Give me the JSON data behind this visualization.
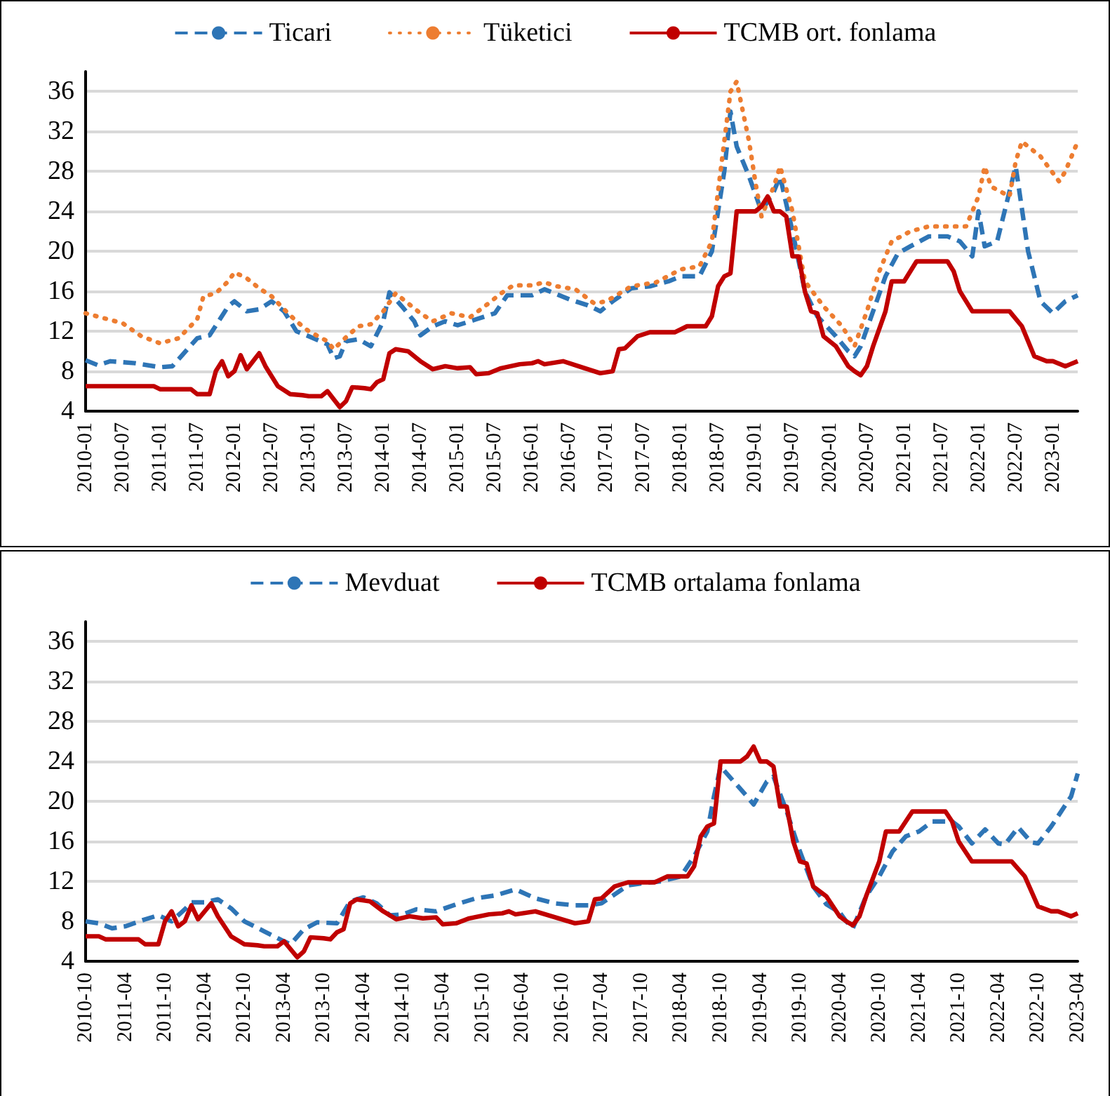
{
  "chart_data": [
    {
      "type": "line",
      "legend": "top",
      "grid": "y",
      "ylim": [
        4,
        38
      ],
      "yticks": [
        4,
        8,
        12,
        16,
        20,
        24,
        28,
        32,
        36
      ],
      "xlim": [
        "2010-01",
        "2023-05"
      ],
      "xticks": [
        "2010-01",
        "2010-07",
        "2011-01",
        "2011-07",
        "2012-01",
        "2012-07",
        "2013-01",
        "2013-07",
        "2014-01",
        "2014-07",
        "2015-01",
        "2015-07",
        "2016-01",
        "2016-07",
        "2017-01",
        "2017-07",
        "2018-01",
        "2018-07",
        "2019-01",
        "2019-07",
        "2020-01",
        "2020-07",
        "2021-01",
        "2021-07",
        "2022-01",
        "2022-07",
        "2023-01"
      ],
      "series": [
        {
          "name": "Ticari",
          "color": "#2e75b6",
          "line_style": "dashed",
          "x": [
            "2010-01",
            "2010-03",
            "2010-05",
            "2010-09",
            "2011-01",
            "2011-03",
            "2011-07",
            "2011-09",
            "2011-12",
            "2012-01",
            "2012-03",
            "2012-05",
            "2012-07",
            "2012-09",
            "2012-11",
            "2013-01",
            "2013-04",
            "2013-05",
            "2013-06",
            "2013-07",
            "2013-09",
            "2013-11",
            "2014-01",
            "2014-02",
            "2014-04",
            "2014-06",
            "2014-07",
            "2014-09",
            "2014-11",
            "2015-01",
            "2015-04",
            "2015-07",
            "2015-09",
            "2016-01",
            "2016-03",
            "2016-07",
            "2016-10",
            "2016-12",
            "2017-02",
            "2017-05",
            "2017-08",
            "2017-11",
            "2018-01",
            "2018-04",
            "2018-06",
            "2018-08",
            "2018-09",
            "2018-10",
            "2018-12",
            "2019-02",
            "2019-04",
            "2019-05",
            "2019-07",
            "2019-09",
            "2019-11",
            "2020-02",
            "2020-04",
            "2020-05",
            "2020-06",
            "2020-08",
            "2020-10",
            "2020-12",
            "2021-02",
            "2021-05",
            "2021-08",
            "2021-10",
            "2021-12",
            "2022-01",
            "2022-02",
            "2022-04",
            "2022-07",
            "2022-09",
            "2022-11",
            "2023-01",
            "2023-03",
            "2023-05"
          ],
          "values": [
            9.1,
            8.6,
            9.0,
            8.8,
            8.4,
            8.5,
            11.3,
            11.6,
            14.5,
            15.0,
            14.0,
            14.2,
            15.0,
            14.0,
            12.0,
            11.5,
            10.7,
            9.3,
            9.5,
            11.0,
            11.2,
            10.5,
            13.0,
            15.9,
            14.5,
            13.0,
            11.6,
            12.5,
            13.0,
            12.6,
            13.2,
            13.8,
            15.6,
            15.6,
            16.2,
            15.2,
            14.6,
            14.0,
            15.0,
            16.3,
            16.5,
            17.0,
            17.5,
            17.5,
            20.0,
            28.0,
            34.0,
            30.5,
            27.5,
            24.0,
            26.0,
            27.5,
            22.0,
            16.0,
            13.5,
            11.5,
            10.0,
            9.5,
            10.5,
            14.0,
            17.5,
            19.8,
            20.5,
            21.5,
            21.5,
            21.0,
            19.5,
            24.0,
            20.5,
            21.0,
            28.5,
            20.0,
            15.0,
            13.8,
            15.0,
            15.6
          ]
        },
        {
          "name": "Tüketici",
          "color": "#ed7d31",
          "line_style": "dotted",
          "x": [
            "2010-01",
            "2010-04",
            "2010-07",
            "2010-10",
            "2011-01",
            "2011-04",
            "2011-07",
            "2011-08",
            "2011-10",
            "2011-12",
            "2012-01",
            "2012-03",
            "2012-05",
            "2012-07",
            "2012-09",
            "2012-11",
            "2013-01",
            "2013-04",
            "2013-05",
            "2013-07",
            "2013-09",
            "2013-11",
            "2014-01",
            "2014-03",
            "2014-05",
            "2014-07",
            "2014-09",
            "2014-12",
            "2015-03",
            "2015-06",
            "2015-08",
            "2015-10",
            "2016-01",
            "2016-03",
            "2016-05",
            "2016-08",
            "2016-11",
            "2017-01",
            "2017-05",
            "2017-09",
            "2018-01",
            "2018-04",
            "2018-06",
            "2018-08",
            "2018-09",
            "2018-10",
            "2018-12",
            "2019-01",
            "2019-02",
            "2019-04",
            "2019-05",
            "2019-07",
            "2019-09",
            "2019-12",
            "2020-03",
            "2020-05",
            "2020-07",
            "2020-09",
            "2020-11",
            "2021-02",
            "2021-05",
            "2021-08",
            "2021-11",
            "2022-01",
            "2022-02",
            "2022-03",
            "2022-06",
            "2022-07",
            "2022-08",
            "2022-11",
            "2023-02",
            "2023-03",
            "2023-05"
          ],
          "values": [
            13.8,
            13.3,
            12.8,
            11.5,
            10.8,
            11.3,
            13.2,
            15.5,
            15.8,
            17.0,
            17.9,
            17.3,
            16.3,
            15.5,
            14.2,
            13.0,
            12.0,
            11.0,
            10.2,
            11.4,
            12.5,
            12.7,
            14.0,
            15.8,
            14.8,
            13.8,
            13.0,
            13.8,
            13.4,
            14.8,
            15.8,
            16.6,
            16.6,
            16.9,
            16.5,
            16.2,
            14.8,
            15.0,
            16.5,
            16.9,
            18.2,
            18.5,
            21.0,
            31.0,
            36.0,
            37.0,
            31.0,
            27.0,
            23.5,
            26.5,
            28.5,
            24.0,
            17.0,
            14.5,
            12.5,
            10.5,
            14.0,
            18.0,
            21.0,
            22.0,
            22.5,
            22.5,
            22.5,
            25.5,
            28.5,
            26.5,
            25.5,
            29.0,
            31.0,
            29.5,
            27.0,
            28.0,
            31.0
          ]
        },
        {
          "name": "TCMB ort. fonlama",
          "color": "#c00000",
          "line_style": "solid",
          "x": [
            "2010-01",
            "2010-12",
            "2011-01",
            "2011-06",
            "2011-07",
            "2011-09",
            "2011-10",
            "2011-11",
            "2011-12",
            "2012-01",
            "2012-02",
            "2012-03",
            "2012-05",
            "2012-06",
            "2012-08",
            "2012-10",
            "2012-12",
            "2013-01",
            "2013-03",
            "2013-04",
            "2013-06",
            "2013-07",
            "2013-08",
            "2013-10",
            "2013-11",
            "2013-12",
            "2014-01",
            "2014-02",
            "2014-03",
            "2014-05",
            "2014-07",
            "2014-09",
            "2014-11",
            "2015-01",
            "2015-03",
            "2015-04",
            "2015-06",
            "2015-08",
            "2015-11",
            "2016-01",
            "2016-02",
            "2016-03",
            "2016-06",
            "2016-09",
            "2016-12",
            "2017-02",
            "2017-03",
            "2017-04",
            "2017-06",
            "2017-08",
            "2017-12",
            "2018-02",
            "2018-05",
            "2018-06",
            "2018-07",
            "2018-08",
            "2018-09",
            "2018-10",
            "2019-01",
            "2019-02",
            "2019-03",
            "2019-04",
            "2019-05",
            "2019-06",
            "2019-07",
            "2019-08",
            "2019-09",
            "2019-10",
            "2019-11",
            "2019-12",
            "2020-02",
            "2020-04",
            "2020-05",
            "2020-06",
            "2020-07",
            "2020-08",
            "2020-10",
            "2020-11",
            "2021-01",
            "2021-03",
            "2021-08",
            "2021-09",
            "2021-10",
            "2021-11",
            "2021-12",
            "2022-06",
            "2022-08",
            "2022-10",
            "2022-12",
            "2023-01",
            "2023-03",
            "2023-05"
          ],
          "values": [
            6.5,
            6.5,
            6.2,
            6.2,
            5.7,
            5.7,
            8.0,
            9.0,
            7.5,
            8.0,
            9.6,
            8.2,
            9.8,
            8.5,
            6.5,
            5.7,
            5.6,
            5.5,
            5.5,
            6.0,
            4.4,
            5.0,
            6.4,
            6.3,
            6.2,
            6.9,
            7.2,
            9.8,
            10.2,
            10.0,
            9.0,
            8.2,
            8.5,
            8.3,
            8.4,
            7.7,
            7.8,
            8.3,
            8.7,
            8.8,
            9.0,
            8.7,
            9.0,
            8.4,
            7.8,
            8.0,
            10.2,
            10.3,
            11.5,
            11.9,
            11.9,
            12.5,
            12.5,
            13.5,
            16.5,
            17.5,
            17.8,
            24.0,
            24.0,
            24.5,
            25.5,
            24.0,
            24.0,
            23.5,
            19.5,
            19.5,
            16.0,
            14.0,
            13.8,
            11.5,
            10.5,
            8.5,
            8.0,
            7.6,
            8.5,
            10.5,
            14.0,
            17.0,
            17.0,
            19.0,
            19.0,
            18.0,
            16.0,
            15.0,
            14.0,
            14.0,
            12.5,
            9.5,
            9.0,
            9.0,
            8.5,
            9.0
          ]
        }
      ]
    },
    {
      "type": "line",
      "legend": "top",
      "grid": "y",
      "ylim": [
        4,
        38
      ],
      "yticks": [
        4,
        8,
        12,
        16,
        20,
        24,
        28,
        32,
        36
      ],
      "xlim": [
        "2010-10",
        "2023-04"
      ],
      "xticks": [
        "2010-10",
        "2011-04",
        "2011-10",
        "2012-04",
        "2012-10",
        "2013-04",
        "2013-10",
        "2014-04",
        "2014-10",
        "2015-04",
        "2015-10",
        "2016-04",
        "2016-10",
        "2017-04",
        "2017-10",
        "2018-04",
        "2018-10",
        "2019-04",
        "2019-10",
        "2020-04",
        "2020-10",
        "2021-04",
        "2021-10",
        "2022-04",
        "2022-10",
        "2023-04"
      ],
      "series": [
        {
          "name": "Mevduat",
          "color": "#2e75b6",
          "line_style": "dashed",
          "x": [
            "2010-10",
            "2010-12",
            "2011-02",
            "2011-04",
            "2011-07",
            "2011-09",
            "2011-11",
            "2012-01",
            "2012-02",
            "2012-04",
            "2012-06",
            "2012-08",
            "2012-10",
            "2013-01",
            "2013-04",
            "2013-05",
            "2013-07",
            "2013-09",
            "2013-12",
            "2014-02",
            "2014-04",
            "2014-06",
            "2014-08",
            "2014-10",
            "2014-12",
            "2015-03",
            "2015-06",
            "2015-09",
            "2015-12",
            "2016-03",
            "2016-06",
            "2016-09",
            "2016-12",
            "2017-02",
            "2017-04",
            "2017-06",
            "2017-08",
            "2017-10",
            "2018-01",
            "2018-04",
            "2018-06",
            "2018-08",
            "2018-09",
            "2018-10",
            "2018-12",
            "2019-02",
            "2019-03",
            "2019-05",
            "2019-06",
            "2019-08",
            "2019-10",
            "2019-12",
            "2020-02",
            "2020-04",
            "2020-05",
            "2020-06",
            "2020-08",
            "2020-10",
            "2020-12",
            "2021-02",
            "2021-04",
            "2021-06",
            "2021-09",
            "2021-10",
            "2021-12",
            "2022-02",
            "2022-04",
            "2022-05",
            "2022-07",
            "2022-09",
            "2022-10",
            "2022-12",
            "2023-02",
            "2023-03",
            "2023-04"
          ],
          "values": [
            8.0,
            7.8,
            7.3,
            7.5,
            8.2,
            8.6,
            8.0,
            9.2,
            9.9,
            9.9,
            10.2,
            9.3,
            8.0,
            7.0,
            6.0,
            5.7,
            7.2,
            7.9,
            7.8,
            10.0,
            10.4,
            9.8,
            8.6,
            8.7,
            9.2,
            9.0,
            9.7,
            10.3,
            10.6,
            11.2,
            10.3,
            9.8,
            9.6,
            9.6,
            9.8,
            10.7,
            11.6,
            11.8,
            12.0,
            12.5,
            14.5,
            17.0,
            20.5,
            23.5,
            22.0,
            20.5,
            19.7,
            22.0,
            22.5,
            19.0,
            15.0,
            11.5,
            9.7,
            8.9,
            8.0,
            7.3,
            10.5,
            12.5,
            15.0,
            16.5,
            17.0,
            18.0,
            18.0,
            17.5,
            15.8,
            17.2,
            15.8,
            15.7,
            17.4,
            15.9,
            15.8,
            17.5,
            19.5,
            20.5,
            22.8
          ]
        },
        {
          "name": "TCMB ortalama fonlama",
          "color": "#c00000",
          "line_style": "solid",
          "x": [
            "2010-10",
            "2010-12",
            "2011-01",
            "2011-06",
            "2011-07",
            "2011-09",
            "2011-10",
            "2011-11",
            "2011-12",
            "2012-01",
            "2012-02",
            "2012-03",
            "2012-05",
            "2012-06",
            "2012-08",
            "2012-10",
            "2012-12",
            "2013-01",
            "2013-03",
            "2013-04",
            "2013-06",
            "2013-07",
            "2013-08",
            "2013-10",
            "2013-11",
            "2013-12",
            "2014-01",
            "2014-02",
            "2014-03",
            "2014-05",
            "2014-07",
            "2014-09",
            "2014-11",
            "2015-01",
            "2015-03",
            "2015-04",
            "2015-06",
            "2015-08",
            "2015-11",
            "2016-01",
            "2016-02",
            "2016-03",
            "2016-06",
            "2016-09",
            "2016-12",
            "2017-02",
            "2017-03",
            "2017-04",
            "2017-06",
            "2017-08",
            "2017-12",
            "2018-02",
            "2018-05",
            "2018-06",
            "2018-07",
            "2018-08",
            "2018-09",
            "2018-10",
            "2019-01",
            "2019-02",
            "2019-03",
            "2019-04",
            "2019-05",
            "2019-06",
            "2019-07",
            "2019-08",
            "2019-09",
            "2019-10",
            "2019-11",
            "2019-12",
            "2020-02",
            "2020-04",
            "2020-05",
            "2020-06",
            "2020-07",
            "2020-08",
            "2020-10",
            "2020-11",
            "2021-01",
            "2021-03",
            "2021-08",
            "2021-09",
            "2021-10",
            "2021-11",
            "2021-12",
            "2022-06",
            "2022-08",
            "2022-10",
            "2022-12",
            "2023-01",
            "2023-03",
            "2023-04"
          ],
          "values": [
            6.5,
            6.5,
            6.2,
            6.2,
            5.7,
            5.7,
            8.0,
            9.0,
            7.5,
            8.0,
            9.6,
            8.2,
            9.8,
            8.5,
            6.5,
            5.7,
            5.6,
            5.5,
            5.5,
            6.0,
            4.4,
            5.0,
            6.4,
            6.3,
            6.2,
            6.9,
            7.2,
            9.8,
            10.2,
            10.0,
            9.0,
            8.2,
            8.5,
            8.3,
            8.4,
            7.7,
            7.8,
            8.3,
            8.7,
            8.8,
            9.0,
            8.7,
            9.0,
            8.4,
            7.8,
            8.0,
            10.2,
            10.3,
            11.5,
            11.9,
            11.9,
            12.5,
            12.5,
            13.5,
            16.5,
            17.5,
            17.8,
            24.0,
            24.0,
            24.5,
            25.5,
            24.0,
            24.0,
            23.5,
            19.5,
            19.5,
            16.0,
            14.0,
            13.8,
            11.5,
            10.5,
            8.5,
            8.0,
            7.6,
            8.5,
            10.5,
            14.0,
            17.0,
            17.0,
            19.0,
            19.0,
            18.0,
            16.0,
            15.0,
            14.0,
            14.0,
            12.5,
            9.5,
            9.0,
            9.0,
            8.5,
            8.8
          ]
        }
      ]
    }
  ]
}
